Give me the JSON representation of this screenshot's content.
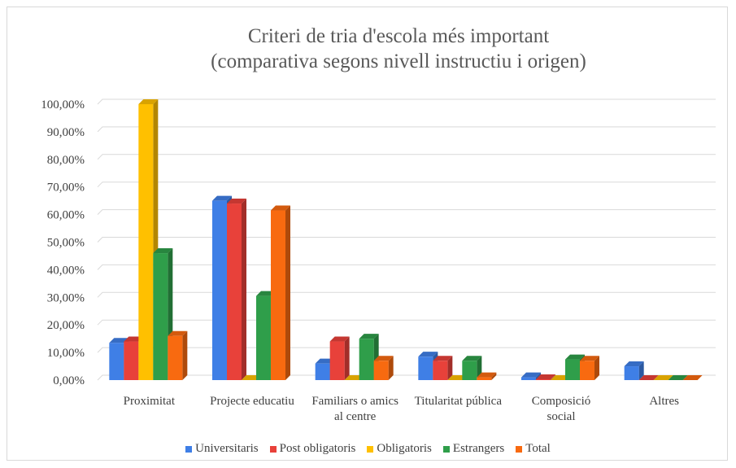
{
  "chart_data": {
    "type": "bar3d",
    "title": [
      "Criteri de tria d'escola més important",
      "(comparativa segons nivell instructiu i origen)"
    ],
    "categories": [
      "Proximitat",
      "Projecte educatiu",
      "Familiars o amics al centre",
      "Titularitat pública",
      "Composició social",
      "Altres"
    ],
    "series": [
      {
        "name": "Universitaris",
        "color": "#3f7fe6",
        "values": [
          13.5,
          65,
          6,
          8.5,
          1,
          5
        ]
      },
      {
        "name": "Post obligatoris",
        "color": "#e8413a",
        "values": [
          14,
          64,
          14,
          7,
          0.3,
          0
        ]
      },
      {
        "name": "Obligatoris",
        "color": "#ffc000",
        "values": [
          100,
          0,
          0,
          0,
          0,
          0
        ]
      },
      {
        "name": "Estrangers",
        "color": "#2f9e4a",
        "values": [
          46,
          30.5,
          15,
          7,
          7.5,
          0
        ]
      },
      {
        "name": "Total",
        "color": "#f86a10",
        "values": [
          16,
          61.5,
          7,
          1,
          7,
          0
        ]
      }
    ],
    "ylim": [
      0,
      100
    ],
    "yticks": [
      {
        "value": 0,
        "label": "0,00%"
      },
      {
        "value": 10,
        "label": "10,00%"
      },
      {
        "value": 20,
        "label": "20,00%"
      },
      {
        "value": 30,
        "label": "30,00%"
      },
      {
        "value": 40,
        "label": "40,00%"
      },
      {
        "value": 50,
        "label": "50,00%"
      },
      {
        "value": 60,
        "label": "60,00%"
      },
      {
        "value": 70,
        "label": "70,00%"
      },
      {
        "value": 80,
        "label": "80,00%"
      },
      {
        "value": 90,
        "label": "90,00%"
      },
      {
        "value": 100,
        "label": "100,00%"
      }
    ],
    "grid": true,
    "legend": "bottom"
  }
}
